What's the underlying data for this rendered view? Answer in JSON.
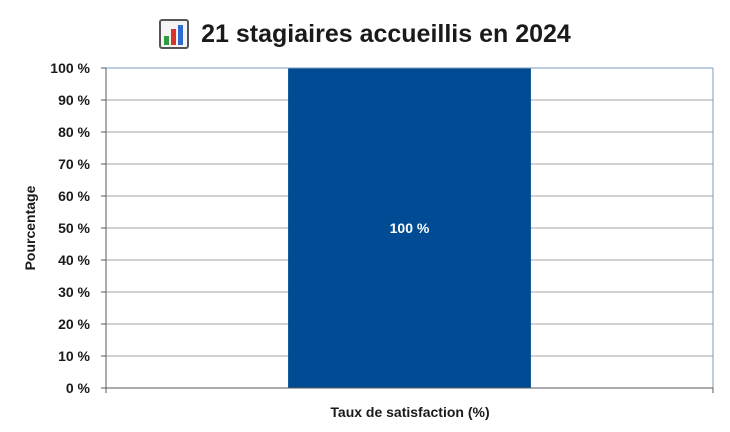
{
  "chart_data": {
    "type": "bar",
    "title": "21 stagiaires accueillis en 2024",
    "title_icon": "bar-chart-icon",
    "categories": [
      "Taux de satisfaction (%)"
    ],
    "values": [
      100
    ],
    "value_labels": [
      "100 %"
    ],
    "xlabel": "Taux de satisfaction (%)",
    "ylabel": "Pourcentage",
    "ylim": [
      0,
      100
    ],
    "yticks": [
      "0 %",
      "10 %",
      "20 %",
      "30 %",
      "40 %",
      "50 %",
      "60 %",
      "70 %",
      "80 %",
      "90 %",
      "100 %"
    ],
    "grid": true,
    "colors": {
      "bar": "#004B93",
      "grid": "#A6A6A6",
      "frame": "#7F9DB9"
    }
  }
}
